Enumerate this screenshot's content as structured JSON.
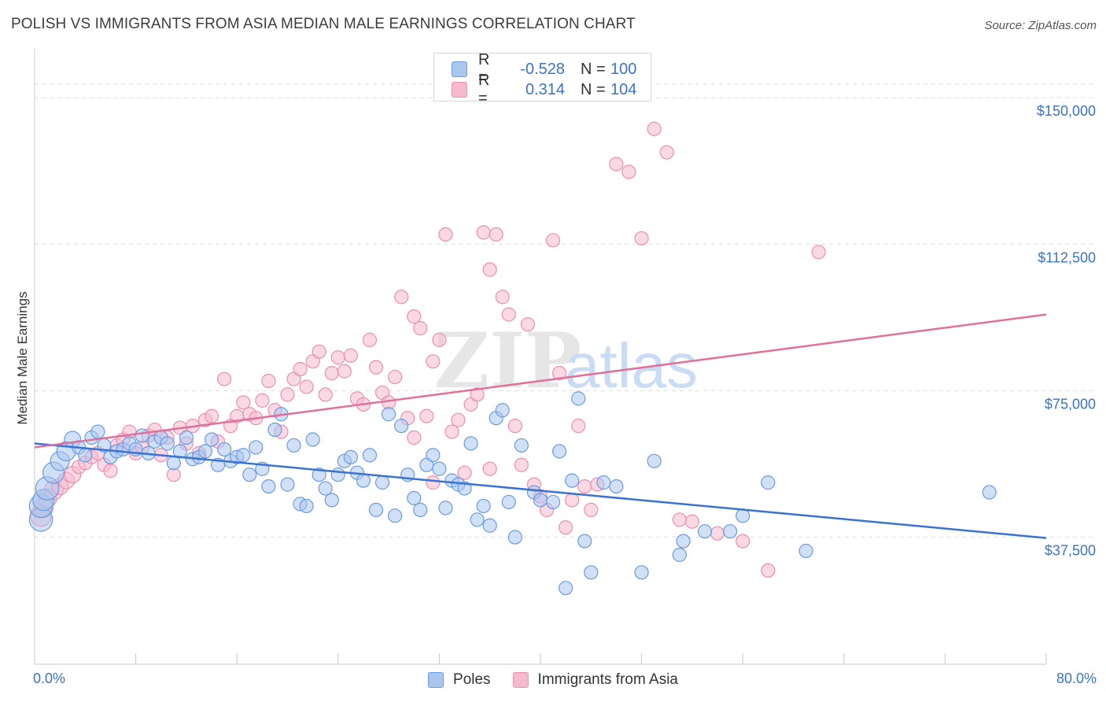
{
  "header": {
    "title": "POLISH VS IMMIGRANTS FROM ASIA MEDIAN MALE EARNINGS CORRELATION CHART",
    "source": "Source: ZipAtlas.com"
  },
  "legend_top": {
    "rows": [
      {
        "r_label": "R =",
        "r_value": "-0.528",
        "n_label": "N =",
        "n_value": "100"
      },
      {
        "r_label": "R =",
        "r_value": "0.314",
        "n_label": "N =",
        "n_value": "104"
      }
    ]
  },
  "legend_bottom": {
    "poles": "Poles",
    "asia": "Immigrants from Asia"
  },
  "axes": {
    "x_min_label": "0.0%",
    "x_max_label": "80.0%",
    "ylabel": "Median Male Earnings"
  },
  "watermark": {
    "zip": "ZIP",
    "atlas": "atlas"
  },
  "colors": {
    "poles_fill": "#a9c6ef",
    "poles_stroke": "#6d9be0",
    "poles_line": "#3a73d1",
    "asia_fill": "#f6b9cd",
    "asia_stroke": "#ec8fb0",
    "asia_line": "#e0719a",
    "grid": "#dddddd",
    "tick_label": "#3a73c9"
  },
  "chart_data": {
    "type": "scatter",
    "title": "POLISH VS IMMIGRANTS FROM ASIA MEDIAN MALE EARNINGS CORRELATION CHART",
    "xlabel": "",
    "ylabel": "Median Male Earnings",
    "xlim": [
      0,
      80
    ],
    "ylim": [
      5000,
      162500
    ],
    "y_ticks": [
      {
        "value": 37500,
        "label": "$37,500"
      },
      {
        "value": 75000,
        "label": "$75,000"
      },
      {
        "value": 112500,
        "label": "$112,500"
      },
      {
        "value": 150000,
        "label": "$150,000"
      }
    ],
    "x_ticks": [
      0,
      8,
      16,
      24,
      32,
      40,
      48,
      56,
      64,
      72,
      80
    ],
    "series": [
      {
        "name": "Poles",
        "r": -0.528,
        "n": 100,
        "trend": {
          "x": [
            0,
            80
          ],
          "y": [
            61500,
            37300
          ]
        },
        "points": [
          [
            0.5,
            42000,
            3
          ],
          [
            0.5,
            45500,
            3
          ],
          [
            0.7,
            47000,
            2.5
          ],
          [
            1.0,
            50000,
            3
          ],
          [
            1.5,
            54000,
            2.5
          ],
          [
            2.0,
            57000,
            2
          ],
          [
            2.5,
            59500,
            2
          ],
          [
            3.0,
            62500,
            1.5
          ],
          [
            3.5,
            60500,
            1
          ],
          [
            4.0,
            58500,
            1
          ],
          [
            4.5,
            63000,
            1
          ],
          [
            5.0,
            64500,
            1
          ],
          [
            5.5,
            61000,
            1
          ],
          [
            6.0,
            58000,
            1
          ],
          [
            6.5,
            59500,
            1
          ],
          [
            7.0,
            60000,
            1
          ],
          [
            7.5,
            61500,
            1
          ],
          [
            8.0,
            60000,
            1
          ],
          [
            8.5,
            63500,
            1
          ],
          [
            9.0,
            59000,
            1
          ],
          [
            9.5,
            62000,
            1
          ],
          [
            10.0,
            63000,
            1
          ],
          [
            10.5,
            61500,
            1
          ],
          [
            11.0,
            56500,
            1
          ],
          [
            11.5,
            59500,
            1
          ],
          [
            12.0,
            63000,
            1
          ],
          [
            12.5,
            57500,
            1
          ],
          [
            13.0,
            58000,
            1
          ],
          [
            13.5,
            59500,
            1
          ],
          [
            14.0,
            62500,
            1
          ],
          [
            14.5,
            56000,
            1
          ],
          [
            15.0,
            60000,
            1
          ],
          [
            15.5,
            57000,
            1
          ],
          [
            16.0,
            58000,
            1
          ],
          [
            16.5,
            58500,
            1
          ],
          [
            17.0,
            53500,
            1
          ],
          [
            17.5,
            60500,
            1
          ],
          [
            18.0,
            55000,
            1
          ],
          [
            18.5,
            50500,
            1
          ],
          [
            19.0,
            65000,
            1
          ],
          [
            19.5,
            69000,
            1
          ],
          [
            20.0,
            51000,
            1
          ],
          [
            20.5,
            61000,
            1
          ],
          [
            21.0,
            46000,
            1
          ],
          [
            21.5,
            45500,
            1
          ],
          [
            22.0,
            62500,
            1
          ],
          [
            22.5,
            53500,
            1
          ],
          [
            23.0,
            50000,
            1
          ],
          [
            23.5,
            47000,
            1
          ],
          [
            24.0,
            53500,
            1
          ],
          [
            24.5,
            57000,
            1
          ],
          [
            25.0,
            58000,
            1
          ],
          [
            25.5,
            54000,
            1
          ],
          [
            26.0,
            52000,
            1
          ],
          [
            26.5,
            58500,
            1
          ],
          [
            27.0,
            44500,
            1
          ],
          [
            27.5,
            51500,
            1
          ],
          [
            28.0,
            69000,
            1
          ],
          [
            28.5,
            43000,
            1
          ],
          [
            29.0,
            66000,
            1
          ],
          [
            29.5,
            53500,
            1
          ],
          [
            30.0,
            47500,
            1
          ],
          [
            30.5,
            44500,
            1
          ],
          [
            31.0,
            56000,
            1
          ],
          [
            31.5,
            58500,
            1
          ],
          [
            32.0,
            55000,
            1
          ],
          [
            32.5,
            45000,
            1
          ],
          [
            33.0,
            52000,
            1
          ],
          [
            33.5,
            51000,
            1
          ],
          [
            34.0,
            50000,
            1
          ],
          [
            34.5,
            61500,
            1
          ],
          [
            35.0,
            42000,
            1
          ],
          [
            35.5,
            45500,
            1
          ],
          [
            36.0,
            40500,
            1
          ],
          [
            36.5,
            68000,
            1
          ],
          [
            37.0,
            70000,
            1
          ],
          [
            37.5,
            46500,
            1
          ],
          [
            38.0,
            37500,
            1
          ],
          [
            38.5,
            61000,
            1
          ],
          [
            39.5,
            49000,
            1
          ],
          [
            40.0,
            47000,
            1
          ],
          [
            41.0,
            46500,
            1
          ],
          [
            41.5,
            59500,
            1
          ],
          [
            42.0,
            24500,
            1
          ],
          [
            42.5,
            52000,
            1
          ],
          [
            43.0,
            73000,
            1
          ],
          [
            43.5,
            36500,
            1
          ],
          [
            44.0,
            28500,
            1
          ],
          [
            45.0,
            51500,
            1
          ],
          [
            46.0,
            50500,
            1
          ],
          [
            48.0,
            28500,
            1
          ],
          [
            49.0,
            57000,
            1
          ],
          [
            51.0,
            33000,
            1
          ],
          [
            51.3,
            36500,
            1
          ],
          [
            53.0,
            39000,
            1
          ],
          [
            55.0,
            39000,
            1
          ],
          [
            56.0,
            43000,
            1
          ],
          [
            58.0,
            51500,
            1
          ],
          [
            61.0,
            34000,
            1
          ],
          [
            75.5,
            49000,
            1
          ]
        ]
      },
      {
        "name": "Immigrants from Asia",
        "r": 0.314,
        "n": 104,
        "trend": {
          "x": [
            0,
            80
          ],
          "y": [
            60500,
            94500
          ]
        },
        "points": [
          [
            0.5,
            43000,
            2.5
          ],
          [
            0.7,
            45000,
            2
          ],
          [
            1.0,
            47500,
            2
          ],
          [
            1.5,
            49500,
            2
          ],
          [
            2.0,
            50500,
            1.5
          ],
          [
            2.5,
            52000,
            1.5
          ],
          [
            3.0,
            53500,
            1.5
          ],
          [
            3.5,
            55500,
            1
          ],
          [
            4.0,
            56500,
            1
          ],
          [
            4.5,
            58000,
            1
          ],
          [
            5.0,
            59000,
            1
          ],
          [
            5.5,
            56000,
            1
          ],
          [
            6.0,
            54500,
            1
          ],
          [
            6.5,
            61000,
            1
          ],
          [
            7.0,
            62500,
            1
          ],
          [
            7.5,
            64500,
            1
          ],
          [
            8.0,
            59000,
            1
          ],
          [
            8.5,
            60500,
            1
          ],
          [
            9.0,
            63500,
            1
          ],
          [
            9.5,
            65000,
            1
          ],
          [
            10.0,
            58500,
            1
          ],
          [
            10.5,
            63000,
            1
          ],
          [
            11.0,
            53500,
            1
          ],
          [
            11.5,
            65500,
            1
          ],
          [
            12.0,
            61500,
            1
          ],
          [
            12.5,
            66000,
            1
          ],
          [
            13.0,
            59000,
            1
          ],
          [
            13.5,
            67500,
            1
          ],
          [
            14.0,
            68500,
            1
          ],
          [
            14.5,
            62000,
            1
          ],
          [
            15.0,
            78000,
            1
          ],
          [
            15.5,
            66000,
            1
          ],
          [
            16.0,
            68500,
            1
          ],
          [
            16.5,
            72000,
            1
          ],
          [
            17.0,
            69000,
            1
          ],
          [
            17.5,
            68000,
            1
          ],
          [
            18.0,
            72500,
            1
          ],
          [
            18.5,
            77500,
            1
          ],
          [
            19.0,
            70000,
            1
          ],
          [
            19.5,
            64500,
            1
          ],
          [
            20.0,
            74000,
            1
          ],
          [
            20.5,
            78000,
            1
          ],
          [
            21.0,
            80500,
            1
          ],
          [
            21.5,
            76000,
            1
          ],
          [
            22.0,
            82500,
            1
          ],
          [
            22.5,
            85000,
            1
          ],
          [
            23.0,
            74000,
            1
          ],
          [
            23.5,
            79500,
            1
          ],
          [
            24.0,
            83500,
            1
          ],
          [
            24.5,
            80000,
            1
          ],
          [
            25.0,
            84000,
            1
          ],
          [
            25.5,
            73000,
            1
          ],
          [
            26.0,
            71500,
            1
          ],
          [
            26.5,
            88000,
            1
          ],
          [
            27.0,
            81000,
            1
          ],
          [
            27.5,
            74500,
            1
          ],
          [
            28.0,
            72000,
            1
          ],
          [
            28.5,
            78500,
            1
          ],
          [
            29.0,
            99000,
            1
          ],
          [
            29.5,
            68000,
            1
          ],
          [
            30.0,
            94000,
            1
          ],
          [
            30.5,
            91000,
            1
          ],
          [
            31.0,
            68500,
            1
          ],
          [
            31.5,
            82500,
            1
          ],
          [
            32.0,
            88000,
            1
          ],
          [
            32.5,
            115000,
            1
          ],
          [
            33.0,
            64500,
            1
          ],
          [
            33.5,
            67500,
            1
          ],
          [
            34.0,
            54000,
            1
          ],
          [
            34.5,
            71500,
            1
          ],
          [
            35.0,
            74000,
            1
          ],
          [
            35.5,
            115500,
            1
          ],
          [
            36.0,
            106000,
            1
          ],
          [
            36.5,
            115000,
            1
          ],
          [
            37.0,
            99000,
            1
          ],
          [
            37.5,
            94500,
            1
          ],
          [
            38.0,
            66000,
            1
          ],
          [
            38.5,
            56000,
            1
          ],
          [
            39.0,
            92000,
            1
          ],
          [
            39.5,
            51000,
            1
          ],
          [
            40.0,
            48000,
            1
          ],
          [
            40.5,
            44500,
            1
          ],
          [
            41.0,
            113500,
            1
          ],
          [
            41.5,
            79500,
            1
          ],
          [
            42.0,
            40000,
            1
          ],
          [
            42.5,
            47000,
            1
          ],
          [
            43.0,
            66000,
            1
          ],
          [
            43.5,
            50500,
            1
          ],
          [
            44.0,
            44500,
            1
          ],
          [
            46.0,
            133000,
            1
          ],
          [
            47.0,
            131000,
            1
          ],
          [
            48.0,
            114000,
            1
          ],
          [
            49.0,
            142000,
            1
          ],
          [
            50.0,
            136000,
            1
          ],
          [
            51.0,
            42000,
            1
          ],
          [
            52.0,
            41500,
            1
          ],
          [
            54.0,
            38500,
            1
          ],
          [
            56.0,
            36500,
            1
          ],
          [
            58.0,
            29000,
            1
          ],
          [
            62.0,
            110500,
            1
          ],
          [
            31.5,
            51500,
            1
          ],
          [
            36.0,
            55000,
            1
          ],
          [
            44.5,
            51000,
            1
          ],
          [
            30.0,
            63000,
            1
          ]
        ]
      }
    ]
  }
}
